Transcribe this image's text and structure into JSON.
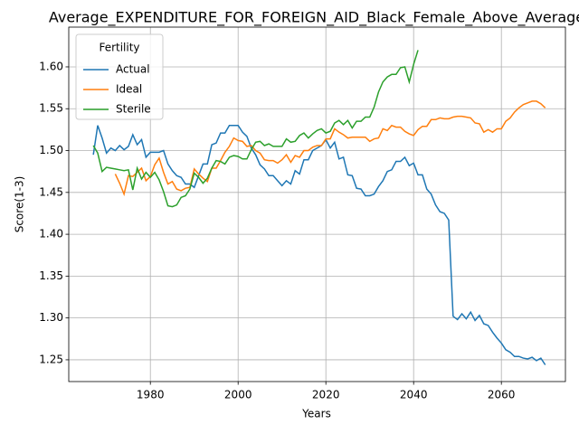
{
  "chart_data": {
    "type": "line",
    "title": "Average_EXPENDITURE_FOR_FOREIGN_AID_Black_Female_Above_Average",
    "xlabel": "Years",
    "ylabel": "Score(1-3)",
    "legend_title": "Fertility",
    "legend": "upper left",
    "grid": true,
    "xlim": [
      1961.4,
      2074.6
    ],
    "ylim": [
      1.224,
      1.6475
    ],
    "xticks": [
      1980,
      2000,
      2020,
      2040,
      2060
    ],
    "yticks": [
      1.25,
      {
        "value": 1.3,
        "label": "1.30"
      },
      1.35,
      {
        "value": 1.4,
        "label": "1.40"
      },
      1.45,
      {
        "value": 1.5,
        "label": "1.50"
      },
      1.55,
      {
        "value": 1.6,
        "label": "1.60"
      }
    ],
    "x": [
      1967,
      1968,
      1969,
      1970,
      1971,
      1972,
      1973,
      1974,
      1975,
      1976,
      1977,
      1978,
      1979,
      1980,
      1981,
      1982,
      1983,
      1984,
      1985,
      1986,
      1987,
      1988,
      1989,
      1990,
      1991,
      1992,
      1993,
      1994,
      1995,
      1996,
      1997,
      1998,
      1999,
      2000,
      2001,
      2002,
      2003,
      2004,
      2005,
      2006,
      2007,
      2008,
      2009,
      2010,
      2011,
      2012,
      2013,
      2014,
      2015,
      2016,
      2017,
      2018,
      2019,
      2020,
      2021,
      2022,
      2023,
      2024,
      2025,
      2026,
      2027,
      2028,
      2029,
      2030,
      2031,
      2032,
      2033,
      2034,
      2035,
      2036,
      2037,
      2038,
      2039,
      2040,
      2041,
      2042,
      2043,
      2044,
      2045,
      2046,
      2047,
      2048,
      2049,
      2050,
      2051,
      2052,
      2053,
      2054,
      2055,
      2056,
      2057,
      2058,
      2059,
      2060,
      2061,
      2062,
      2063,
      2064,
      2065,
      2066,
      2067,
      2068,
      2069,
      2070
    ],
    "series": [
      {
        "name": "Actual",
        "color": "#1f77b4",
        "values": [
          1.495,
          1.53,
          1.515,
          1.497,
          1.503,
          1.5,
          1.506,
          1.501,
          1.505,
          1.519,
          1.507,
          1.513,
          1.492,
          1.498,
          1.498,
          1.498,
          1.5,
          1.484,
          1.476,
          1.47,
          1.468,
          1.46,
          1.46,
          1.456,
          1.47,
          1.484,
          1.484,
          1.507,
          1.509,
          1.521,
          1.521,
          1.53,
          1.53,
          1.53,
          1.522,
          1.517,
          1.503,
          1.495,
          1.483,
          1.478,
          1.47,
          1.47,
          1.464,
          1.458,
          1.464,
          1.46,
          1.476,
          1.472,
          1.489,
          1.489,
          1.5,
          1.503,
          1.506,
          1.513,
          1.503,
          1.51,
          1.49,
          1.492,
          1.471,
          1.47,
          1.455,
          1.454,
          1.446,
          1.446,
          1.448,
          1.457,
          1.464,
          1.475,
          1.477,
          1.487,
          1.487,
          1.492,
          1.482,
          1.485,
          1.471,
          1.471,
          1.454,
          1.448,
          1.435,
          1.427,
          1.425,
          1.417,
          1.302,
          1.298,
          1.305,
          1.299,
          1.307,
          1.297,
          1.303,
          1.293,
          1.291,
          1.283,
          1.276,
          1.27,
          1.262,
          1.259,
          1.254,
          1.254,
          1.252,
          1.251,
          1.253,
          1.249,
          1.252,
          1.244
        ]
      },
      {
        "name": "Ideal",
        "color": "#ff7f0e",
        "values": [
          null,
          null,
          null,
          null,
          null,
          1.472,
          1.461,
          1.448,
          1.47,
          1.469,
          1.474,
          1.479,
          1.464,
          1.469,
          1.483,
          1.491,
          1.474,
          1.46,
          1.463,
          1.454,
          1.452,
          1.455,
          1.456,
          1.478,
          1.472,
          1.467,
          1.463,
          1.479,
          1.479,
          1.488,
          1.498,
          1.505,
          1.515,
          1.512,
          1.511,
          1.505,
          1.506,
          1.5,
          1.497,
          1.489,
          1.488,
          1.488,
          1.485,
          1.489,
          1.495,
          1.486,
          1.494,
          1.492,
          1.5,
          1.5,
          1.504,
          1.506,
          1.506,
          1.514,
          1.514,
          1.526,
          1.522,
          1.519,
          1.515,
          1.516,
          1.516,
          1.516,
          1.516,
          1.511,
          1.514,
          1.515,
          1.526,
          1.524,
          1.53,
          1.528,
          1.528,
          1.523,
          1.52,
          1.518,
          1.525,
          1.529,
          1.529,
          1.537,
          1.537,
          1.539,
          1.538,
          1.538,
          1.54,
          1.541,
          1.541,
          1.54,
          1.539,
          1.533,
          1.532,
          1.522,
          1.525,
          1.522,
          1.526,
          1.526,
          1.535,
          1.539,
          1.546,
          1.551,
          1.555,
          1.557,
          1.559,
          1.559,
          1.556,
          1.551
        ]
      },
      {
        "name": "Sterile",
        "color": "#2ca02c",
        "values": [
          1.506,
          1.497,
          1.475,
          1.48,
          1.479,
          1.478,
          1.477,
          1.476,
          1.477,
          1.453,
          1.479,
          1.466,
          1.474,
          1.468,
          1.474,
          1.465,
          1.451,
          1.434,
          1.433,
          1.435,
          1.444,
          1.446,
          1.454,
          1.473,
          1.468,
          1.461,
          1.467,
          1.479,
          1.488,
          1.487,
          1.484,
          1.492,
          1.494,
          1.493,
          1.49,
          1.49,
          1.501,
          1.51,
          1.511,
          1.506,
          1.508,
          1.505,
          1.505,
          1.505,
          1.514,
          1.51,
          1.511,
          1.518,
          1.521,
          1.515,
          1.52,
          1.524,
          1.526,
          1.521,
          1.523,
          1.533,
          1.536,
          1.531,
          1.536,
          1.527,
          1.535,
          1.535,
          1.54,
          1.54,
          1.552,
          1.57,
          1.582,
          1.588,
          1.591,
          1.591,
          1.599,
          1.6,
          1.582,
          1.603,
          1.62,
          null,
          null,
          null,
          null,
          null,
          null,
          null,
          null,
          null,
          null,
          null,
          null,
          null,
          null,
          null,
          null,
          null,
          null,
          null,
          null,
          null,
          null,
          null,
          null,
          null,
          null,
          null,
          null,
          null
        ]
      }
    ]
  }
}
